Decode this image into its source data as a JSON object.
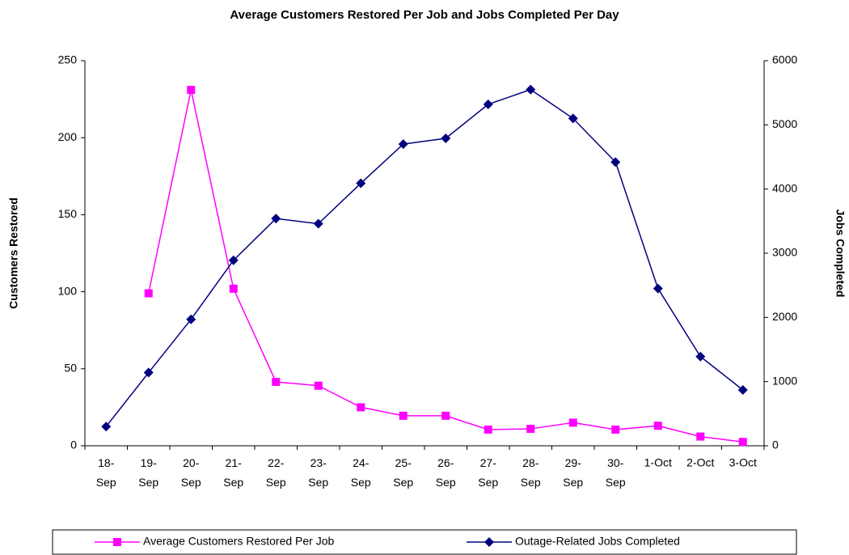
{
  "chart_data": {
    "type": "line",
    "title": "Average Customers Restored Per Job and Jobs Completed Per Day",
    "y_label": "Customers Restored",
    "y2_label": "Jobs Completed",
    "categories": [
      "18-Sep",
      "19-Sep",
      "20-Sep",
      "21-Sep",
      "22-Sep",
      "23-Sep",
      "24-Sep",
      "25-Sep",
      "26-Sep",
      "27-Sep",
      "28-Sep",
      "29-Sep",
      "30-Sep",
      "1-Oct",
      "2-Oct",
      "3-Oct"
    ],
    "ylim": [
      0,
      250
    ],
    "yticks": [
      0,
      50,
      100,
      150,
      200,
      250
    ],
    "y2lim": [
      0,
      6000
    ],
    "y2ticks": [
      0,
      1000,
      2000,
      3000,
      4000,
      5000,
      6000
    ],
    "legend": "bottom",
    "series": [
      {
        "name": "Average Customers Restored Per Job",
        "color": "#ff00ff",
        "marker": "square",
        "values": [
          null,
          99,
          231,
          102,
          41.5,
          39,
          25,
          19.5,
          19.5,
          10.5,
          11,
          15,
          10.5,
          13,
          6,
          2.5
        ]
      },
      {
        "name": "Outage-Related Jobs Completed",
        "color": "#000080",
        "marker": "diamond",
        "axis": "y2",
        "values": [
          300,
          1140,
          1970,
          2890,
          3540,
          3460,
          4090,
          4700,
          4790,
          5320,
          5550,
          5100,
          4420,
          2450,
          1390,
          870
        ]
      }
    ]
  }
}
